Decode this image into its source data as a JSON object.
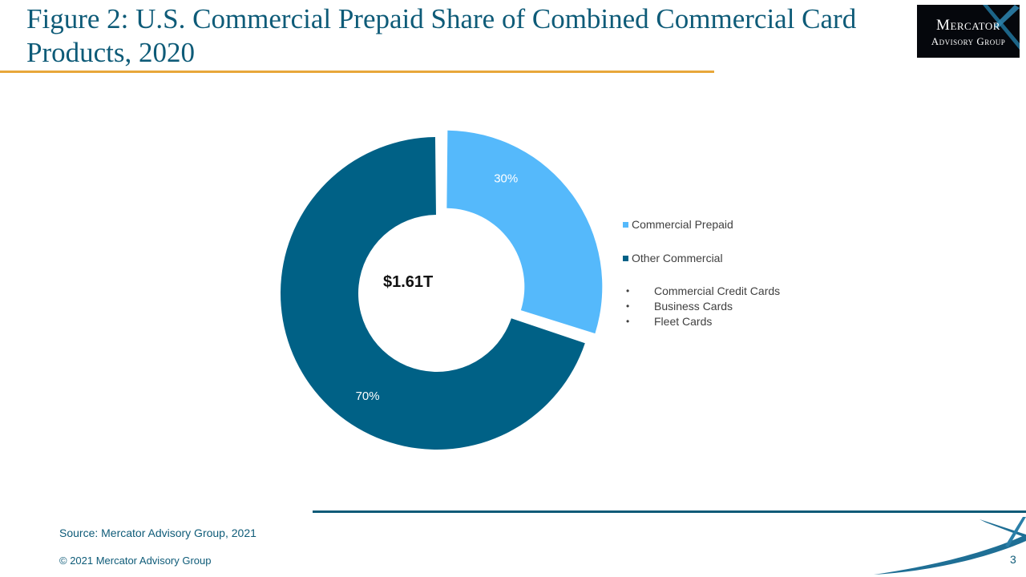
{
  "title": "Figure 2: U.S. Commercial Prepaid Share of Combined Commercial Card Products, 2020",
  "logo": {
    "line1": "Mercator",
    "line2": "Advisory Group"
  },
  "colors": {
    "accent": "#e8a73a",
    "brand": "#0e5b78",
    "prepaid": "#55b9fb",
    "other": "#006186"
  },
  "chart_data": {
    "type": "pie",
    "donut": true,
    "center_label": "$1.61T",
    "slices": [
      {
        "name": "Commercial Prepaid",
        "value": 30,
        "label": "30%",
        "color": "#55b9fb",
        "exploded": true
      },
      {
        "name": "Other Commercial",
        "value": 70,
        "label": "70%",
        "color": "#006186",
        "exploded": false
      }
    ],
    "legend_position": "right",
    "legend_sub_items": [
      "Commercial Credit Cards",
      "Business Cards",
      "Fleet Cards"
    ]
  },
  "footer": {
    "source": "Source: Mercator Advisory Group, 2021",
    "copyright": "© 2021 Mercator Advisory Group",
    "page_number": "3"
  }
}
